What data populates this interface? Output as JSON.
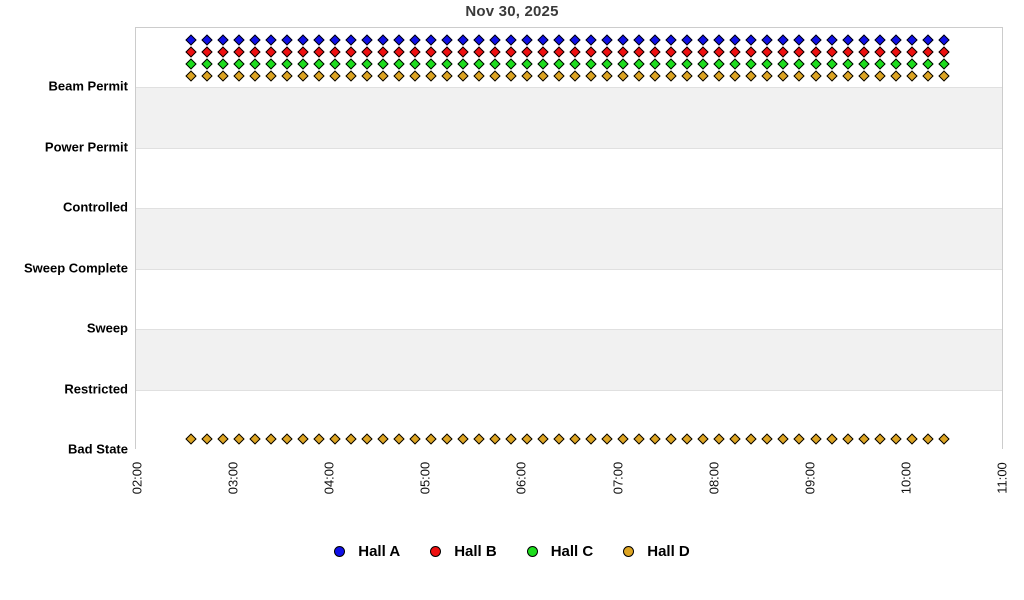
{
  "chart_data": {
    "type": "scatter",
    "title": "Nov 30, 2025",
    "x_axis": {
      "tick_labels": [
        "02:00",
        "03:00",
        "04:00",
        "05:00",
        "06:00",
        "07:00",
        "08:00",
        "09:00",
        "10:00",
        "11:00"
      ],
      "tick_label_rotation_deg": -90,
      "range_hours": [
        2,
        11
      ]
    },
    "y_axis": {
      "categories": [
        "Beam Permit",
        "Power Permit",
        "Controlled",
        "Sweep Complete",
        "Sweep",
        "Restricted",
        "Bad State"
      ]
    },
    "sampling": {
      "start": "02:33",
      "end": "10:23",
      "interval_minutes": 10,
      "count": 48
    },
    "series": [
      {
        "name": "Hall A",
        "state": "Beam Permit",
        "color": "#1010e8",
        "marker": "diamond"
      },
      {
        "name": "Hall B",
        "state": "Beam Permit",
        "color": "#ee1010",
        "marker": "diamond"
      },
      {
        "name": "Hall C",
        "state": "Beam Permit",
        "color": "#1ddd1d",
        "marker": "diamond"
      },
      {
        "name": "Hall D",
        "state": "Beam Permit",
        "color": "#dda422",
        "marker": "diamond"
      },
      {
        "name": "Hall D",
        "state": "Bad State",
        "color": "#dda422",
        "marker": "diamond"
      }
    ],
    "legend": {
      "position": "bottom",
      "entries": [
        {
          "label": "Hall A",
          "color": "#1010e8"
        },
        {
          "label": "Hall B",
          "color": "#ee1010"
        },
        {
          "label": "Hall C",
          "color": "#1ddd1d"
        },
        {
          "label": "Hall D",
          "color": "#dda422"
        }
      ]
    },
    "style": {
      "band_fill": "#f1f1f1",
      "band_alt_fill": "#ffffff",
      "plot_border": "#cccccc",
      "gridline": "#e0e0e0",
      "title_color": "#3a3a3a",
      "marker_outline": "#000000"
    }
  }
}
